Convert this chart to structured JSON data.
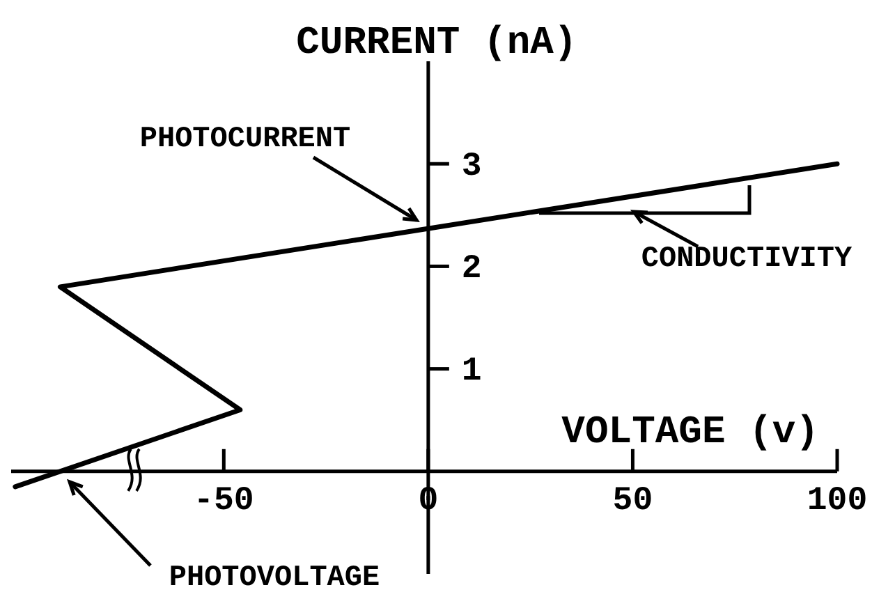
{
  "chart_data": {
    "type": "line",
    "xlabel": "VOLTAGE (v)",
    "ylabel": "CURRENT (nA)",
    "x": [
      -101,
      -46,
      -90,
      100
    ],
    "series": [
      {
        "color": "#000000",
        "values": [
          -0.15,
          0.6,
          1.8,
          3
        ]
      }
    ],
    "xlim": [
      -102,
      100
    ],
    "ylim": [
      -1,
      4
    ],
    "xticks": [
      -50,
      0,
      50,
      100
    ],
    "yticks": [
      1,
      2,
      3
    ],
    "annotations": [
      "PHOTOCURRENT",
      "CONDUCTIVITY",
      "PHOTOVOLTAGE"
    ],
    "line_style": "solid"
  }
}
